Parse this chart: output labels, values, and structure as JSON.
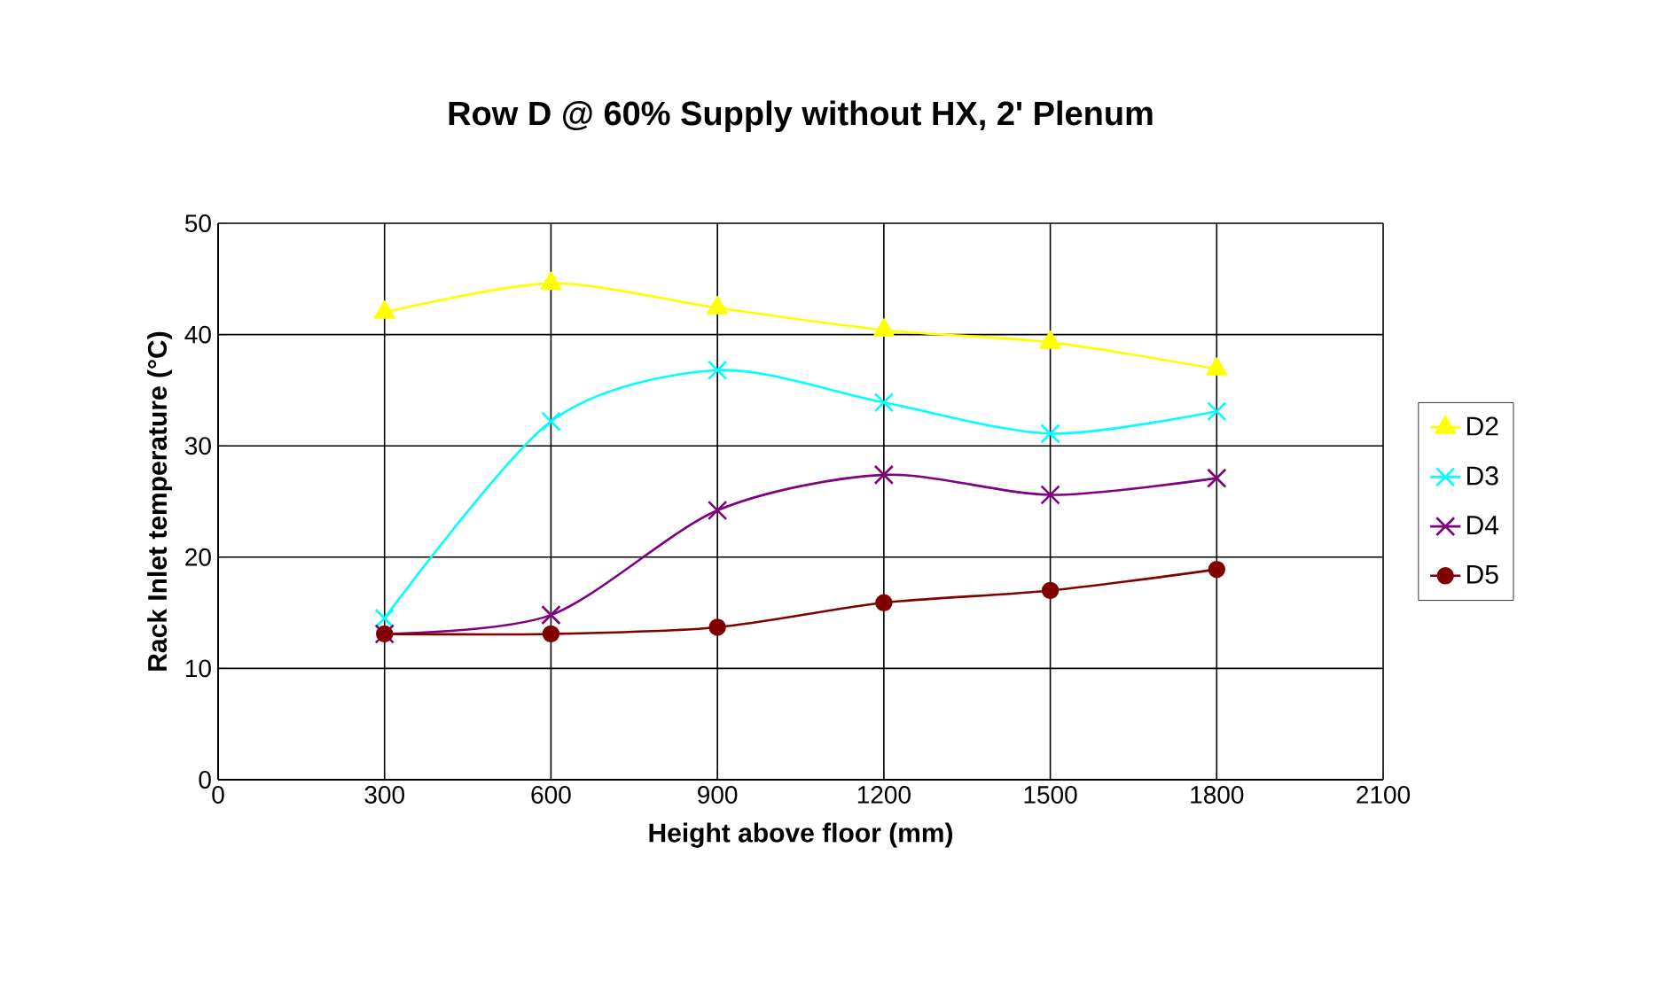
{
  "chart_data": {
    "type": "line",
    "title": "Row D @ 60% Supply without HX, 2' Plenum",
    "xlabel": "Height above floor (mm)",
    "ylabel": "Rack Inlet temperature (°C)",
    "x": [
      300,
      600,
      900,
      1200,
      1500,
      1800
    ],
    "series": [
      {
        "name": "D2",
        "color": "#ffff00",
        "marker": "triangle",
        "values": [
          42.0,
          44.6,
          42.4,
          40.4,
          39.3,
          36.9
        ]
      },
      {
        "name": "D3",
        "color": "#00ffff",
        "marker": "cross",
        "values": [
          14.5,
          32.2,
          36.8,
          33.9,
          31.1,
          33.1
        ]
      },
      {
        "name": "D4",
        "color": "#800080",
        "marker": "cross",
        "values": [
          13.1,
          14.8,
          24.2,
          27.4,
          25.6,
          27.1
        ]
      },
      {
        "name": "D5",
        "color": "#800000",
        "marker": "circle",
        "values": [
          13.1,
          13.1,
          13.7,
          15.9,
          17.0,
          18.9
        ]
      }
    ],
    "xlim": [
      0,
      2100
    ],
    "xticks": [
      0,
      300,
      600,
      900,
      1200,
      1500,
      1800,
      2100
    ],
    "ylim": [
      0,
      50
    ],
    "yticks": [
      0,
      10,
      20,
      30,
      40,
      50
    ],
    "grid": true,
    "legend": "right"
  }
}
